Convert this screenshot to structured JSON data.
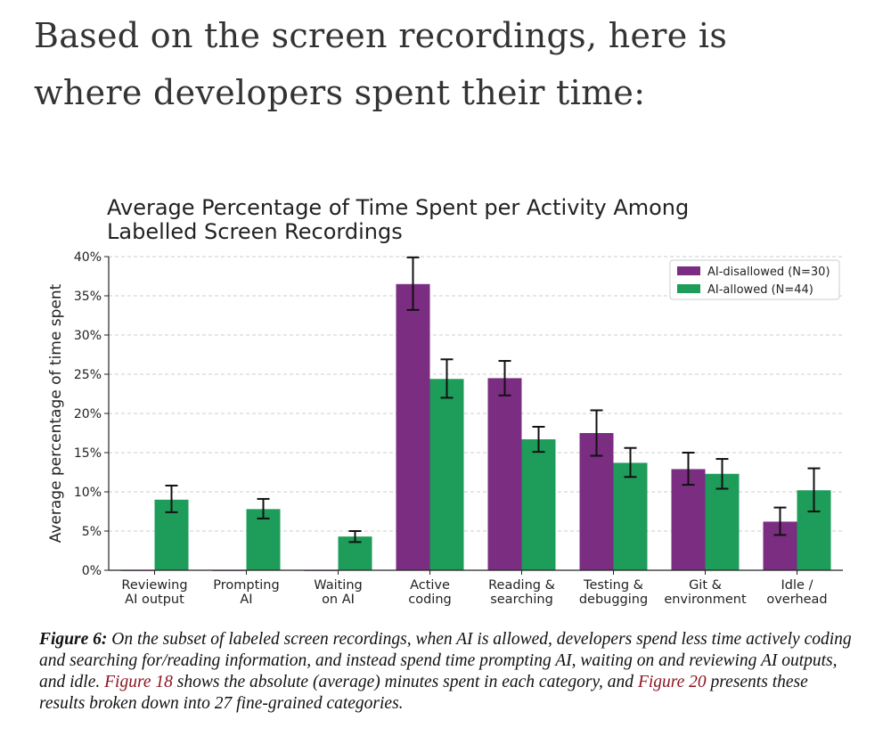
{
  "heading": "Based on the screen recordings, here is where developers spent their time:",
  "caption": {
    "figure_label": "Figure 6:",
    "text_1": " On the subset of labeled screen recordings, when AI is allowed, developers spend less time actively coding and searching for/reading information, and instead spend time prompting AI, waiting on and reviewing AI outputs, and idle. ",
    "ref_1": "Figure 18",
    "text_2": " shows the absolute (average) minutes spent in each category, and ",
    "ref_2": "Figure 20",
    "text_3": " presents these results broken down into 27 fine-grained categories."
  },
  "colors": {
    "disallowed": "#7b2d82",
    "allowed": "#1d9c5a",
    "grid": "#cccccc",
    "axis": "#222222"
  },
  "chart_data": {
    "type": "bar",
    "title": "Average Percentage of Time Spent per Activity Among Labelled Screen Recordings",
    "title_lines": [
      "Average Percentage of Time Spent per Activity Among",
      "Labelled Screen Recordings"
    ],
    "xlabel": "",
    "ylabel": "Average percentage of time spent",
    "ylim": [
      0,
      40
    ],
    "yticks": [
      "0%",
      "5%",
      "10%",
      "15%",
      "20%",
      "25%",
      "30%",
      "35%",
      "40%"
    ],
    "grid": true,
    "legend_position": "top-right",
    "categories": [
      [
        "Reviewing",
        "AI output"
      ],
      [
        "Prompting",
        "AI"
      ],
      [
        "Waiting",
        "on AI"
      ],
      [
        "Active",
        "coding"
      ],
      [
        "Reading &",
        "searching"
      ],
      [
        "Testing &",
        "debugging"
      ],
      [
        "Git &",
        "environment"
      ],
      [
        "Idle /",
        "overhead"
      ]
    ],
    "series": [
      {
        "name": "AI-disallowed (N=30)",
        "values": [
          0,
          0,
          0,
          36.5,
          24.5,
          17.5,
          12.9,
          6.2
        ],
        "err_low": [
          0,
          0,
          0,
          33.2,
          22.3,
          14.6,
          10.9,
          4.5
        ],
        "err_high": [
          0,
          0,
          0,
          39.9,
          26.7,
          20.4,
          15.0,
          8.0
        ]
      },
      {
        "name": "AI-allowed (N=44)",
        "values": [
          9.0,
          7.8,
          4.3,
          24.4,
          16.7,
          13.7,
          12.3,
          10.2
        ],
        "err_low": [
          7.4,
          6.6,
          3.6,
          22.0,
          15.1,
          11.9,
          10.4,
          7.5
        ],
        "err_high": [
          10.8,
          9.1,
          5.0,
          26.9,
          18.3,
          15.6,
          14.2,
          13.0
        ]
      }
    ]
  }
}
